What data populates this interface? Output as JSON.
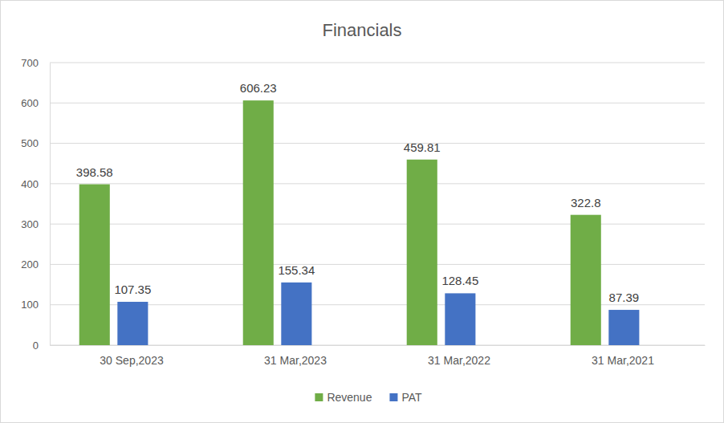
{
  "chart_data": {
    "type": "bar",
    "title": "Financials",
    "categories": [
      "30 Sep,2023",
      "31 Mar,2023",
      "31 Mar,2022",
      "31 Mar,2021"
    ],
    "series": [
      {
        "name": "Revenue",
        "color": "#70ad47",
        "values": [
          398.58,
          606.23,
          459.81,
          322.8
        ]
      },
      {
        "name": "PAT",
        "color": "#4472c4",
        "values": [
          107.35,
          155.34,
          128.45,
          87.39
        ]
      }
    ],
    "ylim": [
      0,
      700
    ],
    "yticks": [
      0,
      100,
      200,
      300,
      400,
      500,
      600,
      700
    ],
    "grid": true,
    "data_labels": true,
    "legend": "bottom"
  }
}
